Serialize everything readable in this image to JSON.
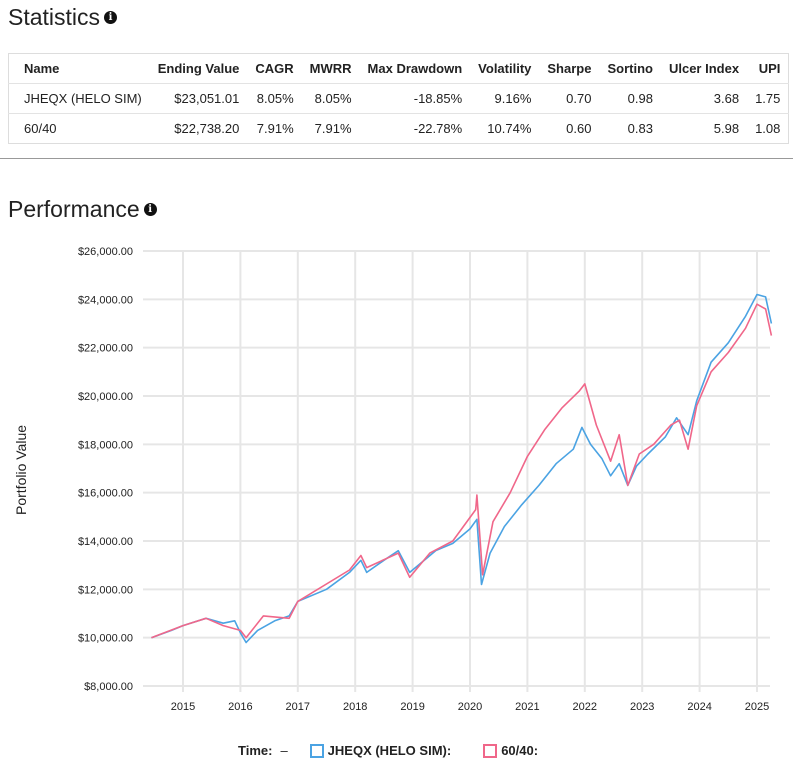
{
  "statistics": {
    "title": "Statistics",
    "columns": [
      "Name",
      "Ending Value",
      "CAGR",
      "MWRR",
      "Max Drawdown",
      "Volatility",
      "Sharpe",
      "Sortino",
      "Ulcer Index",
      "UPI"
    ],
    "rows": [
      [
        "JHEQX (HELO SIM)",
        "$23,051.01",
        "8.05%",
        "8.05%",
        "-18.85%",
        "9.16%",
        "0.70",
        "0.98",
        "3.68",
        "1.75"
      ],
      [
        "60/40",
        "$22,738.20",
        "7.91%",
        "7.91%",
        "-22.78%",
        "10.74%",
        "0.60",
        "0.83",
        "5.98",
        "1.08"
      ]
    ]
  },
  "performance": {
    "title": "Performance"
  },
  "legend": {
    "time_label": "Time:",
    "time_value": "–",
    "series": [
      "JHEQX (HELO SIM):",
      "60/40:"
    ]
  },
  "chart_data": {
    "type": "line",
    "ylabel": "Portfolio Value",
    "xlabel": "",
    "ylim": [
      8000,
      26000
    ],
    "yticks": [
      "$8,000.00",
      "$10,000.00",
      "$12,000.00",
      "$14,000.00",
      "$16,000.00",
      "$18,000.00",
      "$20,000.00",
      "$22,000.00",
      "$24,000.00",
      "$26,000.00"
    ],
    "ytick_values": [
      8000,
      10000,
      12000,
      14000,
      16000,
      18000,
      20000,
      22000,
      24000,
      26000
    ],
    "xticks": [
      "2015",
      "2016",
      "2017",
      "2018",
      "2019",
      "2020",
      "2021",
      "2022",
      "2023",
      "2024",
      "2025"
    ],
    "grid": true,
    "legend_position": "bottom",
    "series": [
      {
        "name": "JHEQX (HELO SIM)",
        "color": "#4ba3e3",
        "points": [
          [
            2014.45,
            10000
          ],
          [
            2014.8,
            10300
          ],
          [
            2015.0,
            10500
          ],
          [
            2015.4,
            10800
          ],
          [
            2015.7,
            10600
          ],
          [
            2015.9,
            10700
          ],
          [
            2016.0,
            10200
          ],
          [
            2016.1,
            9800
          ],
          [
            2016.3,
            10300
          ],
          [
            2016.6,
            10700
          ],
          [
            2016.85,
            10900
          ],
          [
            2017.0,
            11500
          ],
          [
            2017.5,
            12000
          ],
          [
            2017.9,
            12700
          ],
          [
            2018.1,
            13200
          ],
          [
            2018.2,
            12700
          ],
          [
            2018.5,
            13200
          ],
          [
            2018.75,
            13600
          ],
          [
            2018.95,
            12700
          ],
          [
            2019.1,
            13000
          ],
          [
            2019.4,
            13600
          ],
          [
            2019.7,
            13900
          ],
          [
            2020.0,
            14500
          ],
          [
            2020.12,
            14900
          ],
          [
            2020.2,
            12200
          ],
          [
            2020.35,
            13500
          ],
          [
            2020.6,
            14600
          ],
          [
            2020.9,
            15500
          ],
          [
            2021.2,
            16300
          ],
          [
            2021.5,
            17200
          ],
          [
            2021.8,
            17800
          ],
          [
            2021.95,
            18700
          ],
          [
            2022.1,
            18000
          ],
          [
            2022.3,
            17400
          ],
          [
            2022.45,
            16700
          ],
          [
            2022.6,
            17200
          ],
          [
            2022.75,
            16300
          ],
          [
            2022.9,
            17100
          ],
          [
            2023.1,
            17600
          ],
          [
            2023.4,
            18300
          ],
          [
            2023.6,
            19100
          ],
          [
            2023.8,
            18400
          ],
          [
            2023.95,
            19800
          ],
          [
            2024.2,
            21400
          ],
          [
            2024.5,
            22200
          ],
          [
            2024.8,
            23300
          ],
          [
            2025.0,
            24200
          ],
          [
            2025.15,
            24100
          ],
          [
            2025.25,
            23000
          ]
        ]
      },
      {
        "name": "60/40",
        "color": "#f0678a",
        "points": [
          [
            2014.45,
            10000
          ],
          [
            2015.0,
            10500
          ],
          [
            2015.4,
            10800
          ],
          [
            2015.7,
            10500
          ],
          [
            2016.0,
            10300
          ],
          [
            2016.1,
            10000
          ],
          [
            2016.4,
            10900
          ],
          [
            2016.85,
            10800
          ],
          [
            2017.0,
            11500
          ],
          [
            2017.9,
            12800
          ],
          [
            2018.1,
            13400
          ],
          [
            2018.2,
            12900
          ],
          [
            2018.75,
            13500
          ],
          [
            2018.95,
            12500
          ],
          [
            2019.3,
            13500
          ],
          [
            2019.7,
            14000
          ],
          [
            2020.1,
            15300
          ],
          [
            2020.12,
            15900
          ],
          [
            2020.22,
            12600
          ],
          [
            2020.4,
            14800
          ],
          [
            2020.7,
            16000
          ],
          [
            2021.0,
            17500
          ],
          [
            2021.3,
            18600
          ],
          [
            2021.6,
            19500
          ],
          [
            2021.9,
            20200
          ],
          [
            2022.0,
            20500
          ],
          [
            2022.2,
            18800
          ],
          [
            2022.45,
            17300
          ],
          [
            2022.6,
            18400
          ],
          [
            2022.75,
            16300
          ],
          [
            2022.95,
            17600
          ],
          [
            2023.2,
            18000
          ],
          [
            2023.5,
            18800
          ],
          [
            2023.65,
            19000
          ],
          [
            2023.8,
            17800
          ],
          [
            2023.95,
            19600
          ],
          [
            2024.2,
            21000
          ],
          [
            2024.5,
            21800
          ],
          [
            2024.8,
            22800
          ],
          [
            2025.0,
            23800
          ],
          [
            2025.15,
            23600
          ],
          [
            2025.25,
            22500
          ]
        ]
      }
    ]
  }
}
